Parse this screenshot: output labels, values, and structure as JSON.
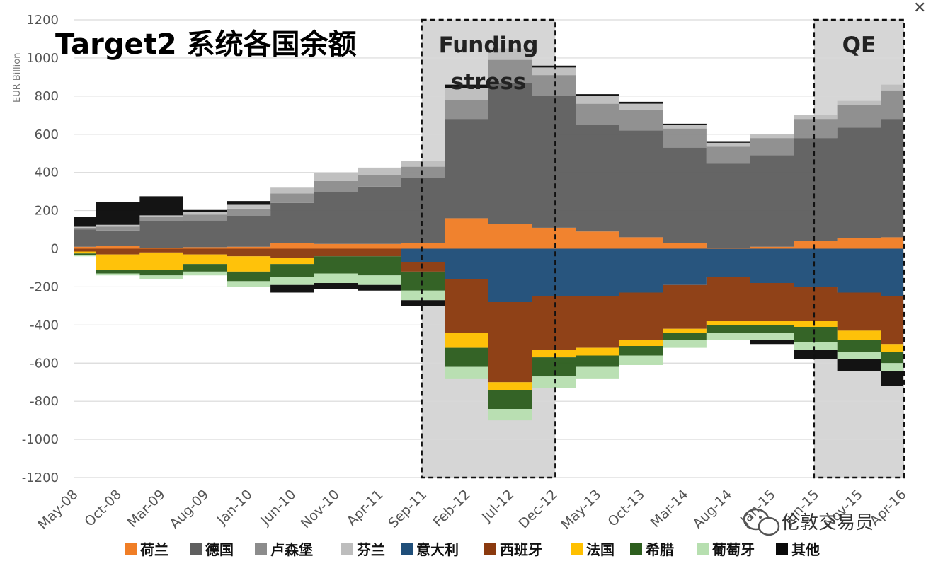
{
  "chart_data": {
    "type": "area",
    "stacked": true,
    "title": "Target2 系统各国余额",
    "ylabel": "EUR Billion",
    "xlabel": "",
    "ylim": [
      -1200,
      1200
    ],
    "yticks": [
      1200,
      1000,
      800,
      600,
      400,
      200,
      0,
      -200,
      -400,
      -600,
      -800,
      -1000,
      -1200
    ],
    "grid": true,
    "legend_position": "bottom",
    "x_tick_labels": [
      "May-08",
      "Oct-08",
      "Mar-09",
      "Aug-09",
      "Jan-10",
      "Jun-10",
      "Nov-10",
      "Apr-11",
      "Sep-11",
      "Feb-12",
      "Jul-12",
      "Dec-12",
      "May-13",
      "Oct-13",
      "Mar-14",
      "Aug-14",
      "Jan-15",
      "Jun-15",
      "Nov-15",
      "Apr-16"
    ],
    "x": [
      "May-08",
      "Oct-08",
      "Mar-09",
      "Aug-09",
      "Jan-10",
      "Jun-10",
      "Nov-10",
      "Apr-11",
      "Sep-11",
      "Feb-12",
      "Jul-12",
      "Dec-12",
      "May-13",
      "Oct-13",
      "Mar-14",
      "Aug-14",
      "Jan-15",
      "Jun-15",
      "Nov-15",
      "Apr-16"
    ],
    "annotations": [
      {
        "label": "Funding stress",
        "from": "Sep-11",
        "to": "Dec-12"
      },
      {
        "label": "QE",
        "from": "Jun-15",
        "to": "Apr-16"
      }
    ],
    "series": [
      {
        "name": "荷兰",
        "color": "#f07e26",
        "side": "positive",
        "values": [
          10,
          15,
          5,
          8,
          10,
          30,
          25,
          25,
          30,
          160,
          130,
          110,
          90,
          60,
          30,
          5,
          10,
          40,
          55,
          60
        ]
      },
      {
        "name": "德国",
        "color": "#5f5f5f",
        "side": "positive",
        "values": [
          90,
          80,
          140,
          140,
          160,
          210,
          270,
          300,
          340,
          520,
          740,
          690,
          560,
          560,
          500,
          440,
          480,
          540,
          580,
          620
        ]
      },
      {
        "name": "卢森堡",
        "color": "#8c8c8c",
        "side": "positive",
        "values": [
          10,
          20,
          20,
          30,
          40,
          50,
          60,
          60,
          60,
          100,
          120,
          110,
          110,
          110,
          100,
          90,
          90,
          100,
          120,
          150
        ]
      },
      {
        "name": "芬兰",
        "color": "#bdbdbd",
        "side": "positive",
        "values": [
          5,
          10,
          10,
          15,
          20,
          30,
          40,
          40,
          30,
          60,
          60,
          40,
          40,
          30,
          20,
          20,
          20,
          20,
          20,
          30
        ]
      },
      {
        "name": "意大利",
        "color": "#1f4e79",
        "side": "negative",
        "values": [
          0,
          0,
          0,
          0,
          0,
          0,
          0,
          0,
          -70,
          -160,
          -280,
          -250,
          -250,
          -230,
          -190,
          -150,
          -180,
          -200,
          -230,
          -250
        ]
      },
      {
        "name": "西班牙",
        "color": "#8b3a0f",
        "side": "negative",
        "values": [
          -15,
          -30,
          -20,
          -30,
          -40,
          -50,
          -40,
          -40,
          -50,
          -280,
          -420,
          -280,
          -270,
          -250,
          -230,
          -230,
          -200,
          -180,
          -200,
          -250
        ]
      },
      {
        "name": "法国",
        "color": "#ffc000",
        "side": "negative",
        "values": [
          -10,
          -80,
          -90,
          -50,
          -80,
          -30,
          0,
          0,
          0,
          -80,
          -40,
          -40,
          -40,
          -30,
          -20,
          -20,
          -20,
          -30,
          -50,
          -40
        ]
      },
      {
        "name": "希腊",
        "color": "#2d5e1e",
        "side": "negative",
        "values": [
          -10,
          -20,
          -30,
          -40,
          -50,
          -70,
          -90,
          -100,
          -100,
          -100,
          -100,
          -100,
          -60,
          -50,
          -40,
          -40,
          -40,
          -80,
          -60,
          -60
        ]
      },
      {
        "name": "葡萄牙",
        "color": "#b7dfb0",
        "side": "negative",
        "values": [
          -5,
          -10,
          -20,
          -20,
          -30,
          -40,
          -50,
          -50,
          -50,
          -60,
          -60,
          -60,
          -60,
          -50,
          -40,
          -40,
          -40,
          -40,
          -40,
          -40
        ]
      },
      {
        "name": "其他",
        "color": "#0a0a0a",
        "side": "mixed",
        "values": [
          50,
          120,
          100,
          10,
          20,
          -40,
          -30,
          -30,
          -30,
          20,
          0,
          10,
          10,
          10,
          5,
          5,
          -20,
          -50,
          -60,
          -80
        ]
      }
    ]
  },
  "watermark": "伦敦交易员",
  "close_icon": "close-icon"
}
